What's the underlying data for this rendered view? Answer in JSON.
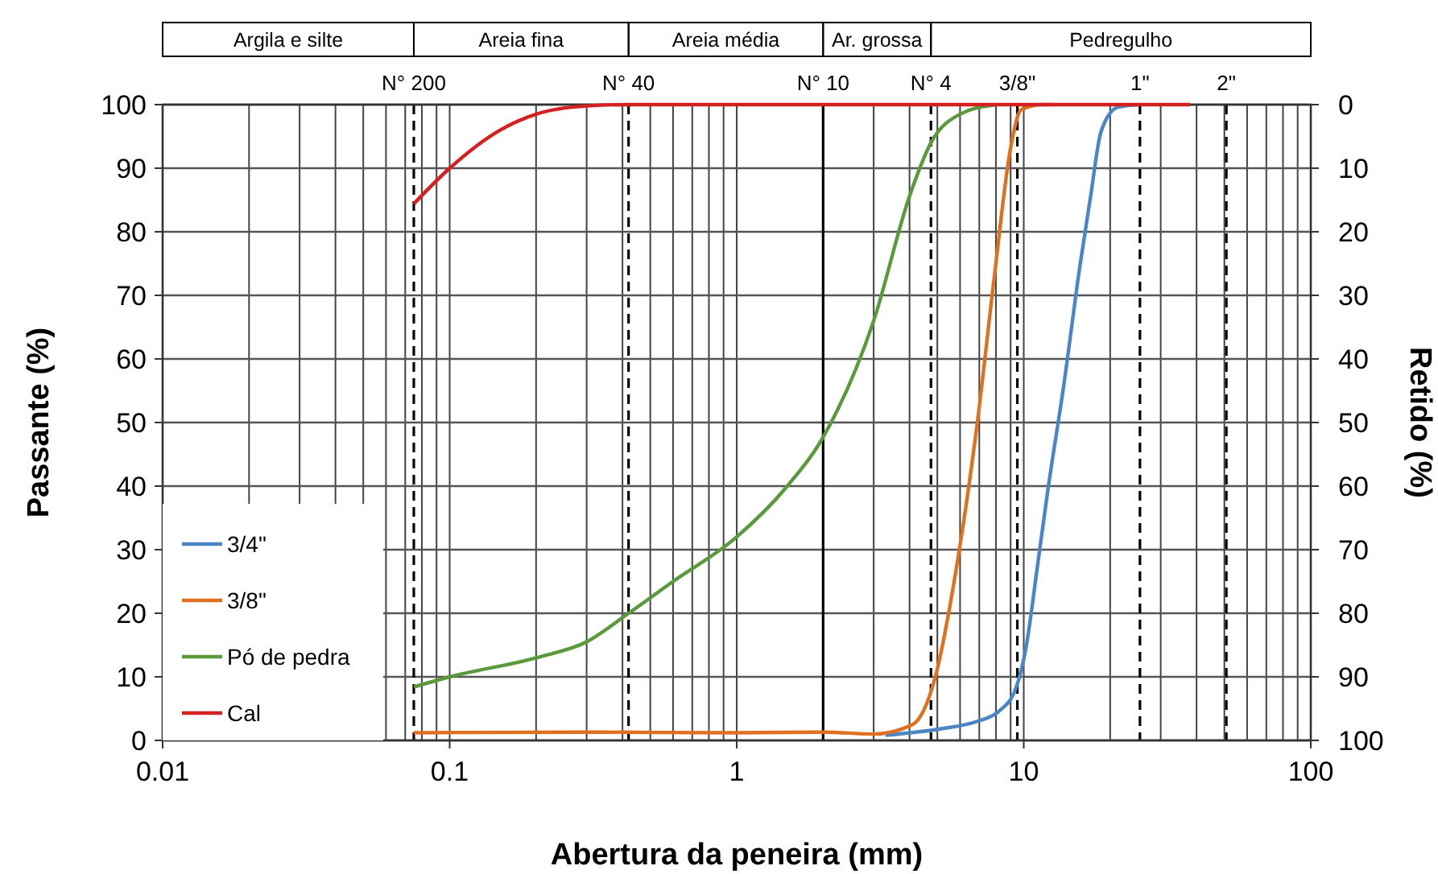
{
  "chart_data": {
    "type": "line",
    "xlabel": "Abertura da peneira (mm)",
    "ylabel": "Passante (%)",
    "y2label": "Retido (%)",
    "log": "x",
    "xlim": [
      0.01,
      100
    ],
    "xticks": [
      0.01,
      0.1,
      1,
      10,
      100
    ],
    "ylim": [
      0,
      100
    ],
    "yticks": [
      0,
      10,
      20,
      30,
      40,
      50,
      60,
      70,
      80,
      90,
      100
    ],
    "y2lim": [
      100,
      0
    ],
    "y2ticks": [
      0,
      10,
      20,
      30,
      40,
      50,
      60,
      70,
      80,
      90,
      100
    ],
    "grid": true,
    "legend": "bottom left",
    "marker": "none",
    "line_style": "solid",
    "series": [
      {
        "name": "3/4\"",
        "color": "#4a86c5",
        "x": [
          3.3,
          5.1,
          6.9,
          8.2,
          9.35,
          10.2,
          11.1,
          12.1,
          13.8,
          15.7,
          17.1,
          18.6,
          21.3,
          25
        ],
        "values": [
          0.8,
          1.8,
          3,
          4.6,
          8,
          14.8,
          26.6,
          39,
          56,
          74.7,
          85.6,
          95.8,
          99.6,
          100
        ]
      },
      {
        "name": "3/8\"",
        "color": "#e07020",
        "x": [
          0.075,
          0.3,
          1,
          2,
          3,
          4.1,
          4.9,
          5.8,
          6.9,
          7.9,
          9,
          9.8,
          11.6,
          12.5
        ],
        "values": [
          1.2,
          1.3,
          1.2,
          1.3,
          1,
          2.5,
          9.7,
          26.6,
          50.2,
          73,
          93.2,
          99.2,
          100,
          100
        ]
      },
      {
        "name": "Pó de pedra",
        "color": "#5a9a3c",
        "x": [
          0.075,
          0.1,
          0.2,
          0.3,
          0.42,
          0.6,
          1,
          1.5,
          2,
          3,
          4,
          4.75,
          6,
          8
        ],
        "values": [
          8.4,
          10,
          13,
          15.5,
          20,
          25,
          32,
          40,
          47.7,
          66,
          85.6,
          94,
          98.5,
          100
        ]
      },
      {
        "name": "Cal",
        "color": "#d42020",
        "x": [
          0.075,
          0.1,
          0.15,
          0.2,
          0.3,
          0.42,
          1,
          38
        ],
        "values": [
          84.4,
          90,
          96,
          98.5,
          99.8,
          100,
          100,
          100
        ]
      }
    ],
    "ref_lines": [
      {
        "axis": "x",
        "value": 0.075,
        "label": "N° 200",
        "line_style": "dashed"
      },
      {
        "axis": "x",
        "value": 0.42,
        "label": "N° 40",
        "line_style": "dashed"
      },
      {
        "axis": "x",
        "value": 2,
        "label": "N° 10",
        "line_style": "solid"
      },
      {
        "axis": "x",
        "value": 4.75,
        "label": "N° 4",
        "line_style": "dashed"
      },
      {
        "axis": "x",
        "value": 9.5,
        "line_style": "dashed"
      },
      {
        "axis": "x",
        "value": 25.4,
        "line_style": "dashed"
      },
      {
        "axis": "x",
        "value": 50.8,
        "line_style": "dashed"
      }
    ],
    "annotations": [
      {
        "text": "3/8\"",
        "x": 9.5,
        "y": 100
      },
      {
        "text": "1\"",
        "x": 25.4,
        "y": 100
      },
      {
        "text": "2\"",
        "x": 50.8,
        "y": 100
      },
      "Argila e silte",
      "Areia fina",
      "Areia média",
      "Ar. grossa",
      "Pedregulho"
    ]
  }
}
